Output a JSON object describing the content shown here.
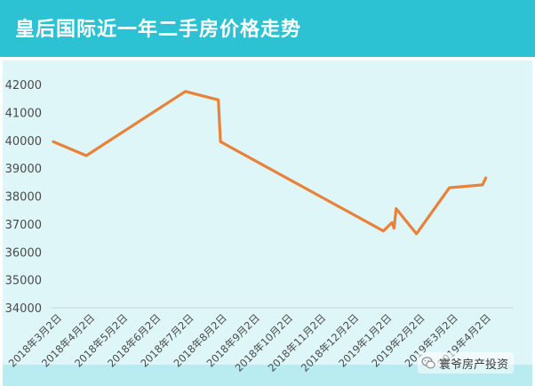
{
  "title": "皇后国际近一年二手房价格走势",
  "watermark": {
    "icon": "wechat-icon",
    "text": "寰爷房产投资"
  },
  "colors": {
    "header": "#2cc2d4",
    "plot_background": "#dff6f8",
    "line": "#e8823a"
  },
  "chart_data": {
    "type": "line",
    "title": "皇后国际近一年二手房价格走势",
    "xlabel": "",
    "ylabel": "",
    "ylim": [
      34000,
      42000
    ],
    "yticks": [
      34000,
      35000,
      36000,
      37000,
      38000,
      39000,
      40000,
      41000,
      42000
    ],
    "categories": [
      "2018年3月2日",
      "2018年4月2日",
      "2018年5月2日",
      "2018年6月2日",
      "2018年7月2日",
      "2018年8月2日",
      "2018年9月2日",
      "2018年10月2日",
      "2018年11月2日",
      "2018年12月2日",
      "2019年1月2日",
      "2019年2月2日",
      "2019年3月2日",
      "2019年4月2日"
    ],
    "grid": false,
    "legend": "none",
    "series": [
      {
        "points": [
          {
            "x": "2018-03-02",
            "y": 39950
          },
          {
            "x": "2018-04-02",
            "y": 39450
          },
          {
            "x": "2018-07-02",
            "y": 41750
          },
          {
            "x": "2018-08-02",
            "y": 41450
          },
          {
            "x": "2018-08-04",
            "y": 39950
          },
          {
            "x": "2019-01-02",
            "y": 36750
          },
          {
            "x": "2019-01-10",
            "y": 37050
          },
          {
            "x": "2019-01-12",
            "y": 36850
          },
          {
            "x": "2019-01-14",
            "y": 37550
          },
          {
            "x": "2019-02-02",
            "y": 36650
          },
          {
            "x": "2019-03-02",
            "y": 38300
          },
          {
            "x": "2019-04-02",
            "y": 38400
          },
          {
            "x": "2019-04-05",
            "y": 38650
          }
        ]
      }
    ]
  }
}
